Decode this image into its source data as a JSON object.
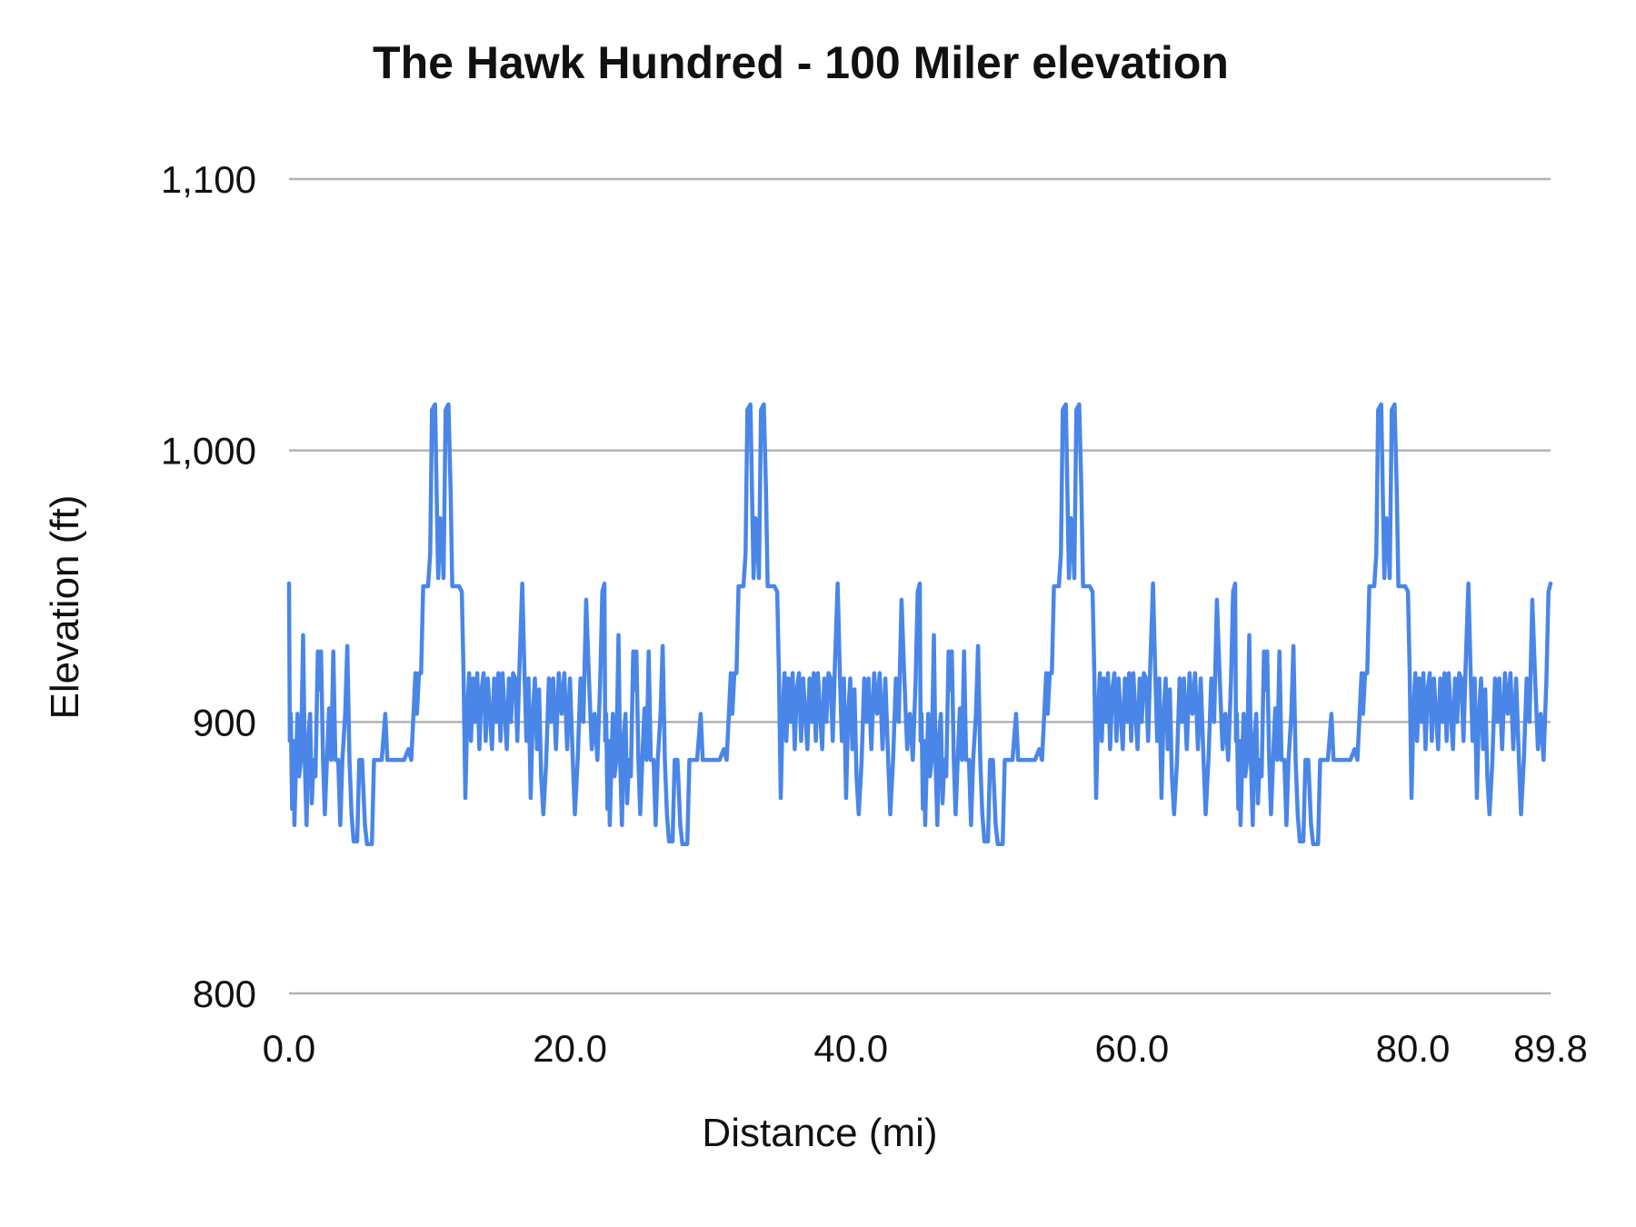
{
  "chart": {
    "title": "The Hawk Hundred - 100 Miler elevation",
    "x_axis_title": "Distance (mi)",
    "y_axis_title": "Elevation (ft)"
  },
  "colors": {
    "line": "#4a86e8",
    "gridline": "#b2b2b2",
    "text": "#111111",
    "background": "#ffffff"
  },
  "chart_data": {
    "type": "line",
    "title": "The Hawk Hundred - 100 Miler elevation",
    "xlabel": "Distance (mi)",
    "ylabel": "Elevation (ft)",
    "xlim": [
      0,
      89.8
    ],
    "ylim": [
      800,
      1100
    ],
    "grid": "horizontal",
    "legend": "none",
    "x_ticks": [
      {
        "value": 0,
        "label": "0.0"
      },
      {
        "value": 20,
        "label": "20.0"
      },
      {
        "value": 40,
        "label": "40.0"
      },
      {
        "value": 60,
        "label": "60.0"
      },
      {
        "value": 80,
        "label": "80.0"
      },
      {
        "value": 89.8,
        "label": "89.8"
      }
    ],
    "y_ticks": [
      {
        "value": 800,
        "label": "800"
      },
      {
        "value": 900,
        "label": "900"
      },
      {
        "value": 1000,
        "label": "1,000"
      },
      {
        "value": 1100,
        "label": "1,100"
      }
    ],
    "series": [
      {
        "name": "Elevation",
        "color": "#4a86e8",
        "structure": "four identical ~22.45 mi laps repeated across 0 to 89.8 mi; each lap oscillates 855-950 ft with a double summit of ~1015 ft near lap miles 10.3 and 11.3",
        "laps": 4,
        "lap_length_mi": 22.45,
        "lap_profile_mi_ft": [
          [
            0,
            951
          ],
          [
            0.06,
            893
          ],
          [
            0.12,
            903
          ],
          [
            0.22,
            868
          ],
          [
            0.3,
            893
          ],
          [
            0.38,
            862
          ],
          [
            0.5,
            885
          ],
          [
            0.6,
            903
          ],
          [
            0.72,
            880
          ],
          [
            0.85,
            886
          ],
          [
            1,
            932
          ],
          [
            1.12,
            886
          ],
          [
            1.25,
            862
          ],
          [
            1.38,
            895
          ],
          [
            1.5,
            903
          ],
          [
            1.62,
            870
          ],
          [
            1.75,
            886
          ],
          [
            1.88,
            880
          ],
          [
            2.05,
            926
          ],
          [
            2.15,
            912
          ],
          [
            2.28,
            926
          ],
          [
            2.42,
            886
          ],
          [
            2.55,
            866
          ],
          [
            2.7,
            886
          ],
          [
            2.85,
            905
          ],
          [
            3,
            886
          ],
          [
            3.15,
            926
          ],
          [
            3.3,
            886
          ],
          [
            3.5,
            886
          ],
          [
            3.65,
            862
          ],
          [
            3.8,
            886
          ],
          [
            4,
            903
          ],
          [
            4.15,
            928
          ],
          [
            4.3,
            886
          ],
          [
            4.45,
            866
          ],
          [
            4.6,
            856
          ],
          [
            4.85,
            856
          ],
          [
            5,
            886
          ],
          [
            5.2,
            886
          ],
          [
            5.4,
            862
          ],
          [
            5.55,
            855
          ],
          [
            5.9,
            855
          ],
          [
            6.05,
            886
          ],
          [
            6.3,
            886
          ],
          [
            6.6,
            886
          ],
          [
            6.85,
            903
          ],
          [
            7,
            886
          ],
          [
            7.4,
            886
          ],
          [
            7.8,
            886
          ],
          [
            8.2,
            886
          ],
          [
            8.5,
            890
          ],
          [
            8.7,
            886
          ],
          [
            9,
            918
          ],
          [
            9.1,
            903
          ],
          [
            9.25,
            918
          ],
          [
            9.4,
            918
          ],
          [
            9.55,
            950
          ],
          [
            9.9,
            950
          ],
          [
            10.05,
            962
          ],
          [
            10.18,
            1015
          ],
          [
            10.4,
            1017
          ],
          [
            10.52,
            981
          ],
          [
            10.62,
            953
          ],
          [
            10.75,
            975
          ],
          [
            10.88,
            968
          ],
          [
            11,
            953
          ],
          [
            11.15,
            1015
          ],
          [
            11.35,
            1017
          ],
          [
            11.5,
            985
          ],
          [
            11.62,
            950
          ],
          [
            12.1,
            950
          ],
          [
            12.3,
            948
          ],
          [
            12.42,
            918
          ],
          [
            12.55,
            872
          ],
          [
            12.7,
            905
          ],
          [
            12.82,
            918
          ],
          [
            12.95,
            893
          ],
          [
            13.1,
            916
          ],
          [
            13.25,
            900
          ],
          [
            13.4,
            918
          ],
          [
            13.55,
            890
          ],
          [
            13.7,
            912
          ],
          [
            13.85,
            918
          ],
          [
            14,
            893
          ],
          [
            14.15,
            916
          ],
          [
            14.3,
            903
          ],
          [
            14.45,
            890
          ],
          [
            14.6,
            916
          ],
          [
            14.75,
            900
          ],
          [
            14.9,
            918
          ],
          [
            15.05,
            893
          ],
          [
            15.2,
            918
          ],
          [
            15.35,
            903
          ],
          [
            15.5,
            890
          ],
          [
            15.65,
            916
          ],
          [
            15.8,
            900
          ],
          [
            15.95,
            918
          ],
          [
            16.1,
            916
          ],
          [
            16.25,
            893
          ],
          [
            16.4,
            920
          ],
          [
            16.6,
            951
          ],
          [
            16.75,
            920
          ],
          [
            16.9,
            893
          ],
          [
            17.05,
            916
          ],
          [
            17.2,
            872
          ],
          [
            17.35,
            903
          ],
          [
            17.5,
            916
          ],
          [
            17.65,
            890
          ],
          [
            17.8,
            912
          ],
          [
            17.95,
            880
          ],
          [
            18.1,
            866
          ],
          [
            18.3,
            885
          ],
          [
            18.5,
            916
          ],
          [
            18.65,
            900
          ],
          [
            18.8,
            916
          ],
          [
            19,
            890
          ],
          [
            19.2,
            918
          ],
          [
            19.4,
            903
          ],
          [
            19.6,
            918
          ],
          [
            19.8,
            890
          ],
          [
            20,
            916
          ],
          [
            20.2,
            886
          ],
          [
            20.35,
            866
          ],
          [
            20.55,
            886
          ],
          [
            20.75,
            916
          ],
          [
            20.95,
            900
          ],
          [
            21.15,
            945
          ],
          [
            21.35,
            916
          ],
          [
            21.55,
            890
          ],
          [
            21.75,
            903
          ],
          [
            21.95,
            886
          ],
          [
            22.15,
            915
          ],
          [
            22.3,
            948
          ],
          [
            22.45,
            951
          ]
        ]
      }
    ]
  }
}
